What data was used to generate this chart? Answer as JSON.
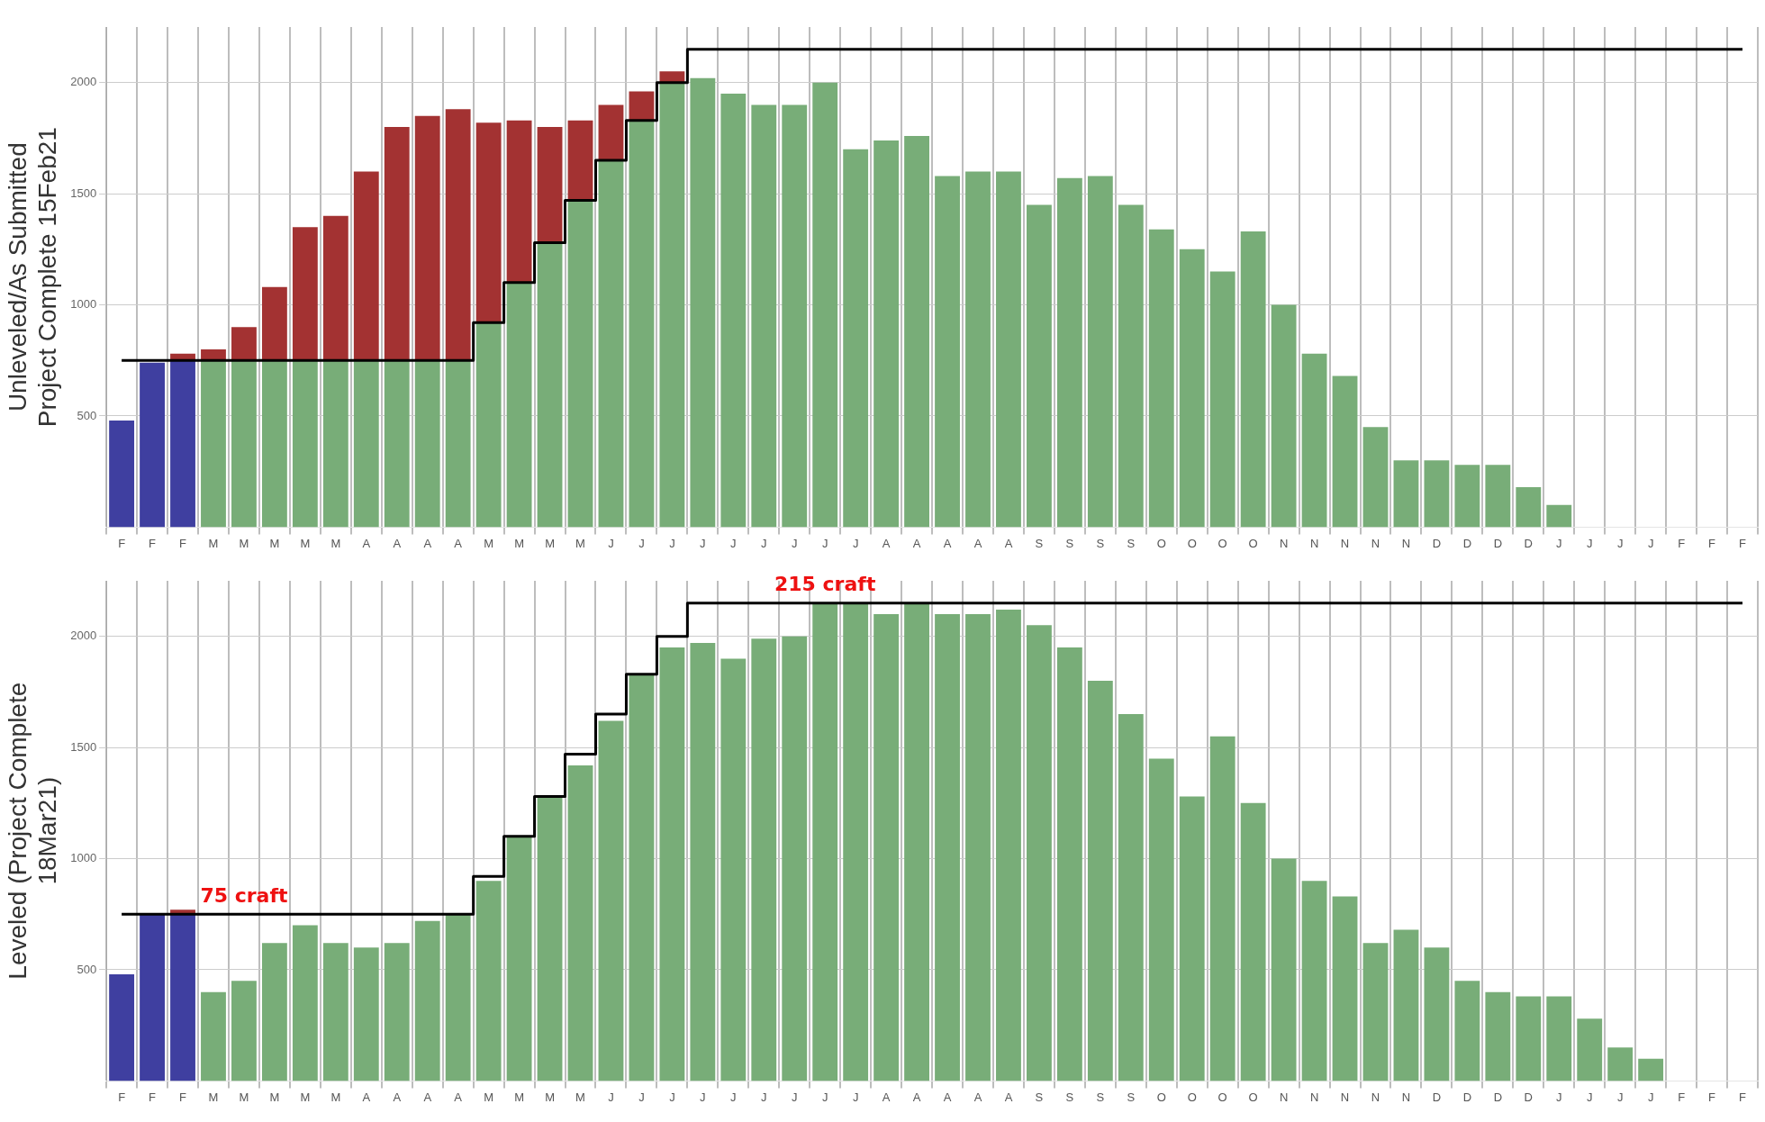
{
  "chart_data": [
    {
      "type": "bar",
      "stacked": true,
      "ylabel": "Unleveled/As Submitted\nProject Complete 15Feb21",
      "categories": [
        "F",
        "F",
        "F",
        "M",
        "M",
        "M",
        "M",
        "M",
        "A",
        "A",
        "A",
        "A",
        "M",
        "M",
        "M",
        "M",
        "J",
        "J",
        "J",
        "J",
        "J",
        "J",
        "J",
        "J",
        "J",
        "A",
        "A",
        "A",
        "A",
        "A",
        "S",
        "S",
        "S",
        "S",
        "O",
        "O",
        "O",
        "O",
        "N",
        "N",
        "N",
        "N",
        "N",
        "D",
        "D",
        "D",
        "D",
        "J",
        "J",
        "J",
        "J",
        "F",
        "F",
        "F"
      ],
      "series": [
        {
          "color": "#3f3fa0",
          "values": [
            480,
            740,
            750,
            null,
            null,
            null,
            null,
            null,
            null,
            null,
            null,
            null,
            null,
            null,
            null,
            null,
            null,
            null,
            null,
            null,
            null,
            null,
            null,
            null,
            null,
            null,
            null,
            null,
            null,
            null,
            null,
            null,
            null,
            null,
            null,
            null,
            null,
            null,
            null,
            null,
            null,
            null,
            null,
            null,
            null,
            null,
            null,
            null,
            null,
            null,
            null,
            null,
            null,
            null
          ]
        },
        {
          "color": "#78ad78",
          "values": [
            null,
            null,
            null,
            750,
            750,
            750,
            750,
            750,
            750,
            750,
            750,
            750,
            920,
            1100,
            1280,
            1470,
            1650,
            1830,
            2000,
            2020,
            1950,
            1900,
            1900,
            2000,
            1700,
            1740,
            1760,
            1580,
            1600,
            1600,
            1450,
            1570,
            1580,
            1450,
            1340,
            1250,
            1150,
            1330,
            1000,
            780,
            680,
            450,
            300,
            300,
            280,
            280,
            180,
            100,
            0,
            0,
            0,
            0,
            0,
            0
          ]
        },
        {
          "color": "#a33232",
          "values": [
            null,
            null,
            30,
            50,
            150,
            330,
            600,
            650,
            850,
            1050,
            1100,
            1130,
            900,
            730,
            520,
            360,
            250,
            130,
            50,
            null,
            null,
            null,
            null,
            null,
            null,
            null,
            null,
            null,
            null,
            null,
            null,
            null,
            null,
            null,
            null,
            null,
            null,
            null,
            null,
            null,
            null,
            null,
            null,
            null,
            null,
            null,
            null,
            null,
            null,
            null,
            null,
            null,
            null,
            null
          ]
        },
        {
          "type": "step",
          "color": "#000000",
          "values": [
            750,
            750,
            750,
            750,
            750,
            750,
            750,
            750,
            750,
            750,
            750,
            750,
            920,
            1100,
            1280,
            1470,
            1650,
            1830,
            2000,
            2150,
            2150,
            2150,
            2150,
            2150,
            2150,
            2150,
            2150,
            2150,
            2150,
            2150,
            2150,
            2150,
            2150,
            2150,
            2150,
            2150,
            2150,
            2150,
            2150,
            2150,
            2150,
            2150,
            2150,
            2150,
            2150,
            2150,
            2150,
            2150,
            2150,
            2150,
            2150,
            2150,
            2150,
            2150
          ]
        }
      ],
      "ylim": [
        0,
        2250
      ],
      "yticks": [
        500,
        1000,
        1500,
        2000
      ],
      "grid": true,
      "legend": false
    },
    {
      "type": "bar",
      "stacked": true,
      "ylabel": "Leveled (Project Complete\n18Mar21)",
      "categories": [
        "F",
        "F",
        "F",
        "M",
        "M",
        "M",
        "M",
        "M",
        "A",
        "A",
        "A",
        "A",
        "M",
        "M",
        "M",
        "M",
        "J",
        "J",
        "J",
        "J",
        "J",
        "J",
        "J",
        "J",
        "J",
        "A",
        "A",
        "A",
        "A",
        "A",
        "S",
        "S",
        "S",
        "S",
        "O",
        "O",
        "O",
        "O",
        "N",
        "N",
        "N",
        "N",
        "N",
        "D",
        "D",
        "D",
        "D",
        "J",
        "J",
        "J",
        "J",
        "F",
        "F",
        "F"
      ],
      "series": [
        {
          "color": "#3f3fa0",
          "values": [
            480,
            750,
            750,
            null,
            null,
            null,
            null,
            null,
            null,
            null,
            null,
            null,
            null,
            null,
            null,
            null,
            null,
            null,
            null,
            null,
            null,
            null,
            null,
            null,
            null,
            null,
            null,
            null,
            null,
            null,
            null,
            null,
            null,
            null,
            null,
            null,
            null,
            null,
            null,
            null,
            null,
            null,
            null,
            null,
            null,
            null,
            null,
            null,
            null,
            null,
            null,
            null,
            null,
            null
          ]
        },
        {
          "color": "#78ad78",
          "values": [
            null,
            null,
            null,
            400,
            450,
            620,
            700,
            620,
            600,
            620,
            720,
            750,
            900,
            1100,
            1280,
            1420,
            1620,
            1830,
            1950,
            1970,
            1900,
            1990,
            2000,
            2150,
            2150,
            2100,
            2150,
            2100,
            2100,
            2120,
            2050,
            1950,
            1800,
            1650,
            1450,
            1280,
            1550,
            1250,
            1000,
            900,
            830,
            620,
            680,
            600,
            450,
            400,
            380,
            380,
            280,
            150,
            100,
            0,
            0,
            0
          ]
        },
        {
          "color": "#a33232",
          "values": [
            null,
            null,
            20,
            null,
            null,
            null,
            null,
            null,
            null,
            null,
            null,
            null,
            null,
            null,
            null,
            null,
            null,
            null,
            null,
            null,
            null,
            null,
            null,
            null,
            null,
            null,
            null,
            null,
            null,
            null,
            null,
            null,
            null,
            null,
            null,
            null,
            null,
            null,
            null,
            null,
            null,
            null,
            null,
            null,
            null,
            null,
            null,
            null,
            null,
            null,
            null,
            null,
            null,
            null
          ]
        },
        {
          "type": "step",
          "color": "#000000",
          "values": [
            750,
            750,
            750,
            750,
            750,
            750,
            750,
            750,
            750,
            750,
            750,
            750,
            920,
            1100,
            1280,
            1470,
            1650,
            1830,
            2000,
            2150,
            2150,
            2150,
            2150,
            2150,
            2150,
            2150,
            2150,
            2150,
            2150,
            2150,
            2150,
            2150,
            2150,
            2150,
            2150,
            2150,
            2150,
            2150,
            2150,
            2150,
            2150,
            2150,
            2150,
            2150,
            2150,
            2150,
            2150,
            2150,
            2150,
            2150,
            2150,
            2150,
            2150,
            2150
          ]
        }
      ],
      "ylim": [
        0,
        2250
      ],
      "yticks": [
        500,
        1000,
        1500,
        2000
      ],
      "grid": true,
      "legend": false,
      "annotations": [
        {
          "text": "75 craft",
          "y": 750
        },
        {
          "text": "215 craft",
          "y": 2150
        }
      ]
    }
  ]
}
